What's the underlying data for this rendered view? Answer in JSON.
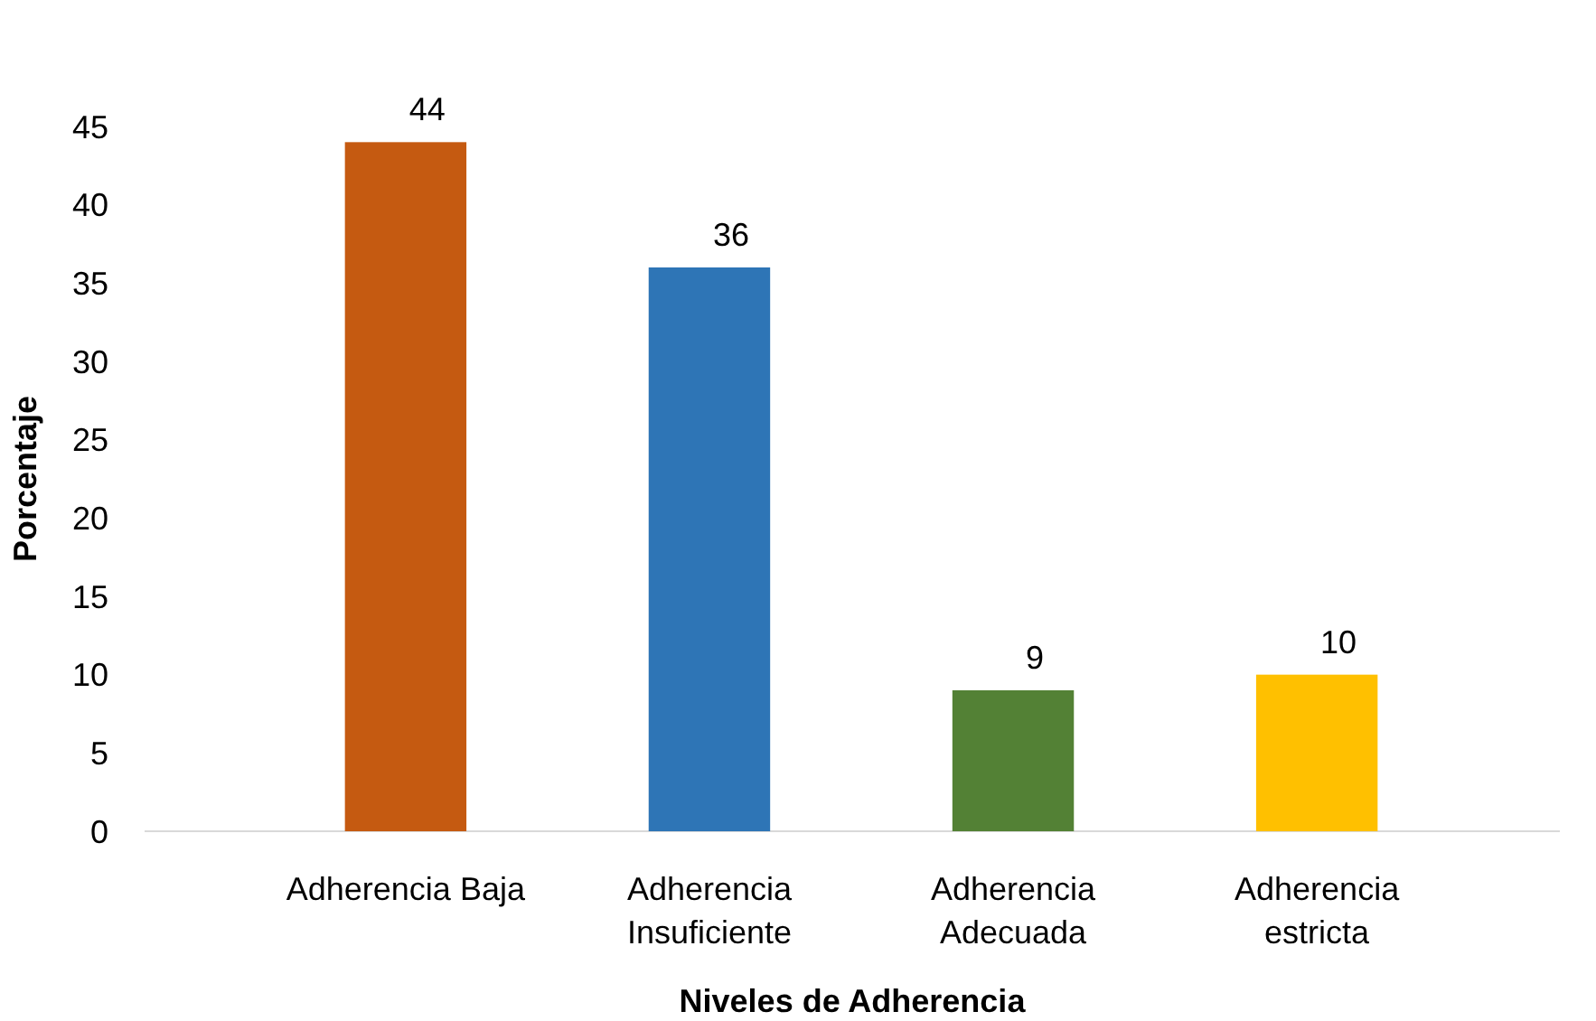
{
  "chart_data": {
    "type": "bar",
    "xlabel": "Niveles de Adherencia",
    "ylabel": "Porcentaje",
    "categories": [
      "Adherencia Baja",
      "Adherencia Insuficiente",
      "Adherencia Adecuada",
      "Adherencia estricta"
    ],
    "values": [
      44,
      36,
      9,
      10
    ],
    "colors": [
      "#c55a11",
      "#2e75b6",
      "#538135",
      "#ffc000"
    ],
    "ylim": [
      0,
      45
    ],
    "yticks": [
      0,
      5,
      10,
      15,
      20,
      25,
      30,
      35,
      40,
      45
    ],
    "grid": false,
    "data_labels": true
  }
}
